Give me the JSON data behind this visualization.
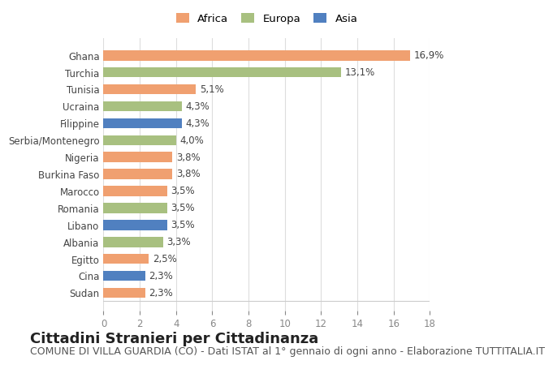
{
  "countries": [
    "Ghana",
    "Turchia",
    "Tunisia",
    "Ucraina",
    "Filippine",
    "Serbia/Montenegro",
    "Nigeria",
    "Burkina Faso",
    "Marocco",
    "Romania",
    "Libano",
    "Albania",
    "Egitto",
    "Cina",
    "Sudan"
  ],
  "values": [
    16.9,
    13.1,
    5.1,
    4.3,
    4.3,
    4.0,
    3.8,
    3.8,
    3.5,
    3.5,
    3.5,
    3.3,
    2.5,
    2.3,
    2.3
  ],
  "labels": [
    "16,9%",
    "13,1%",
    "5,1%",
    "4,3%",
    "4,3%",
    "4,0%",
    "3,8%",
    "3,8%",
    "3,5%",
    "3,5%",
    "3,5%",
    "3,3%",
    "2,5%",
    "2,3%",
    "2,3%"
  ],
  "continents": [
    "Africa",
    "Europa",
    "Africa",
    "Europa",
    "Asia",
    "Europa",
    "Africa",
    "Africa",
    "Africa",
    "Europa",
    "Asia",
    "Europa",
    "Africa",
    "Asia",
    "Africa"
  ],
  "colors": {
    "Africa": "#F0A070",
    "Europa": "#A8C080",
    "Asia": "#5080C0"
  },
  "xlim": [
    0,
    18
  ],
  "xticks": [
    0,
    2,
    4,
    6,
    8,
    10,
    12,
    14,
    16,
    18
  ],
  "title": "Cittadini Stranieri per Cittadinanza",
  "subtitle": "COMUNE DI VILLA GUARDIA (CO) - Dati ISTAT al 1° gennaio di ogni anno - Elaborazione TUTTITALIA.IT",
  "title_fontsize": 13,
  "subtitle_fontsize": 9,
  "background_color": "#ffffff",
  "grid_color": "#dddddd",
  "bar_height": 0.6,
  "legend_order": [
    "Africa",
    "Europa",
    "Asia"
  ]
}
